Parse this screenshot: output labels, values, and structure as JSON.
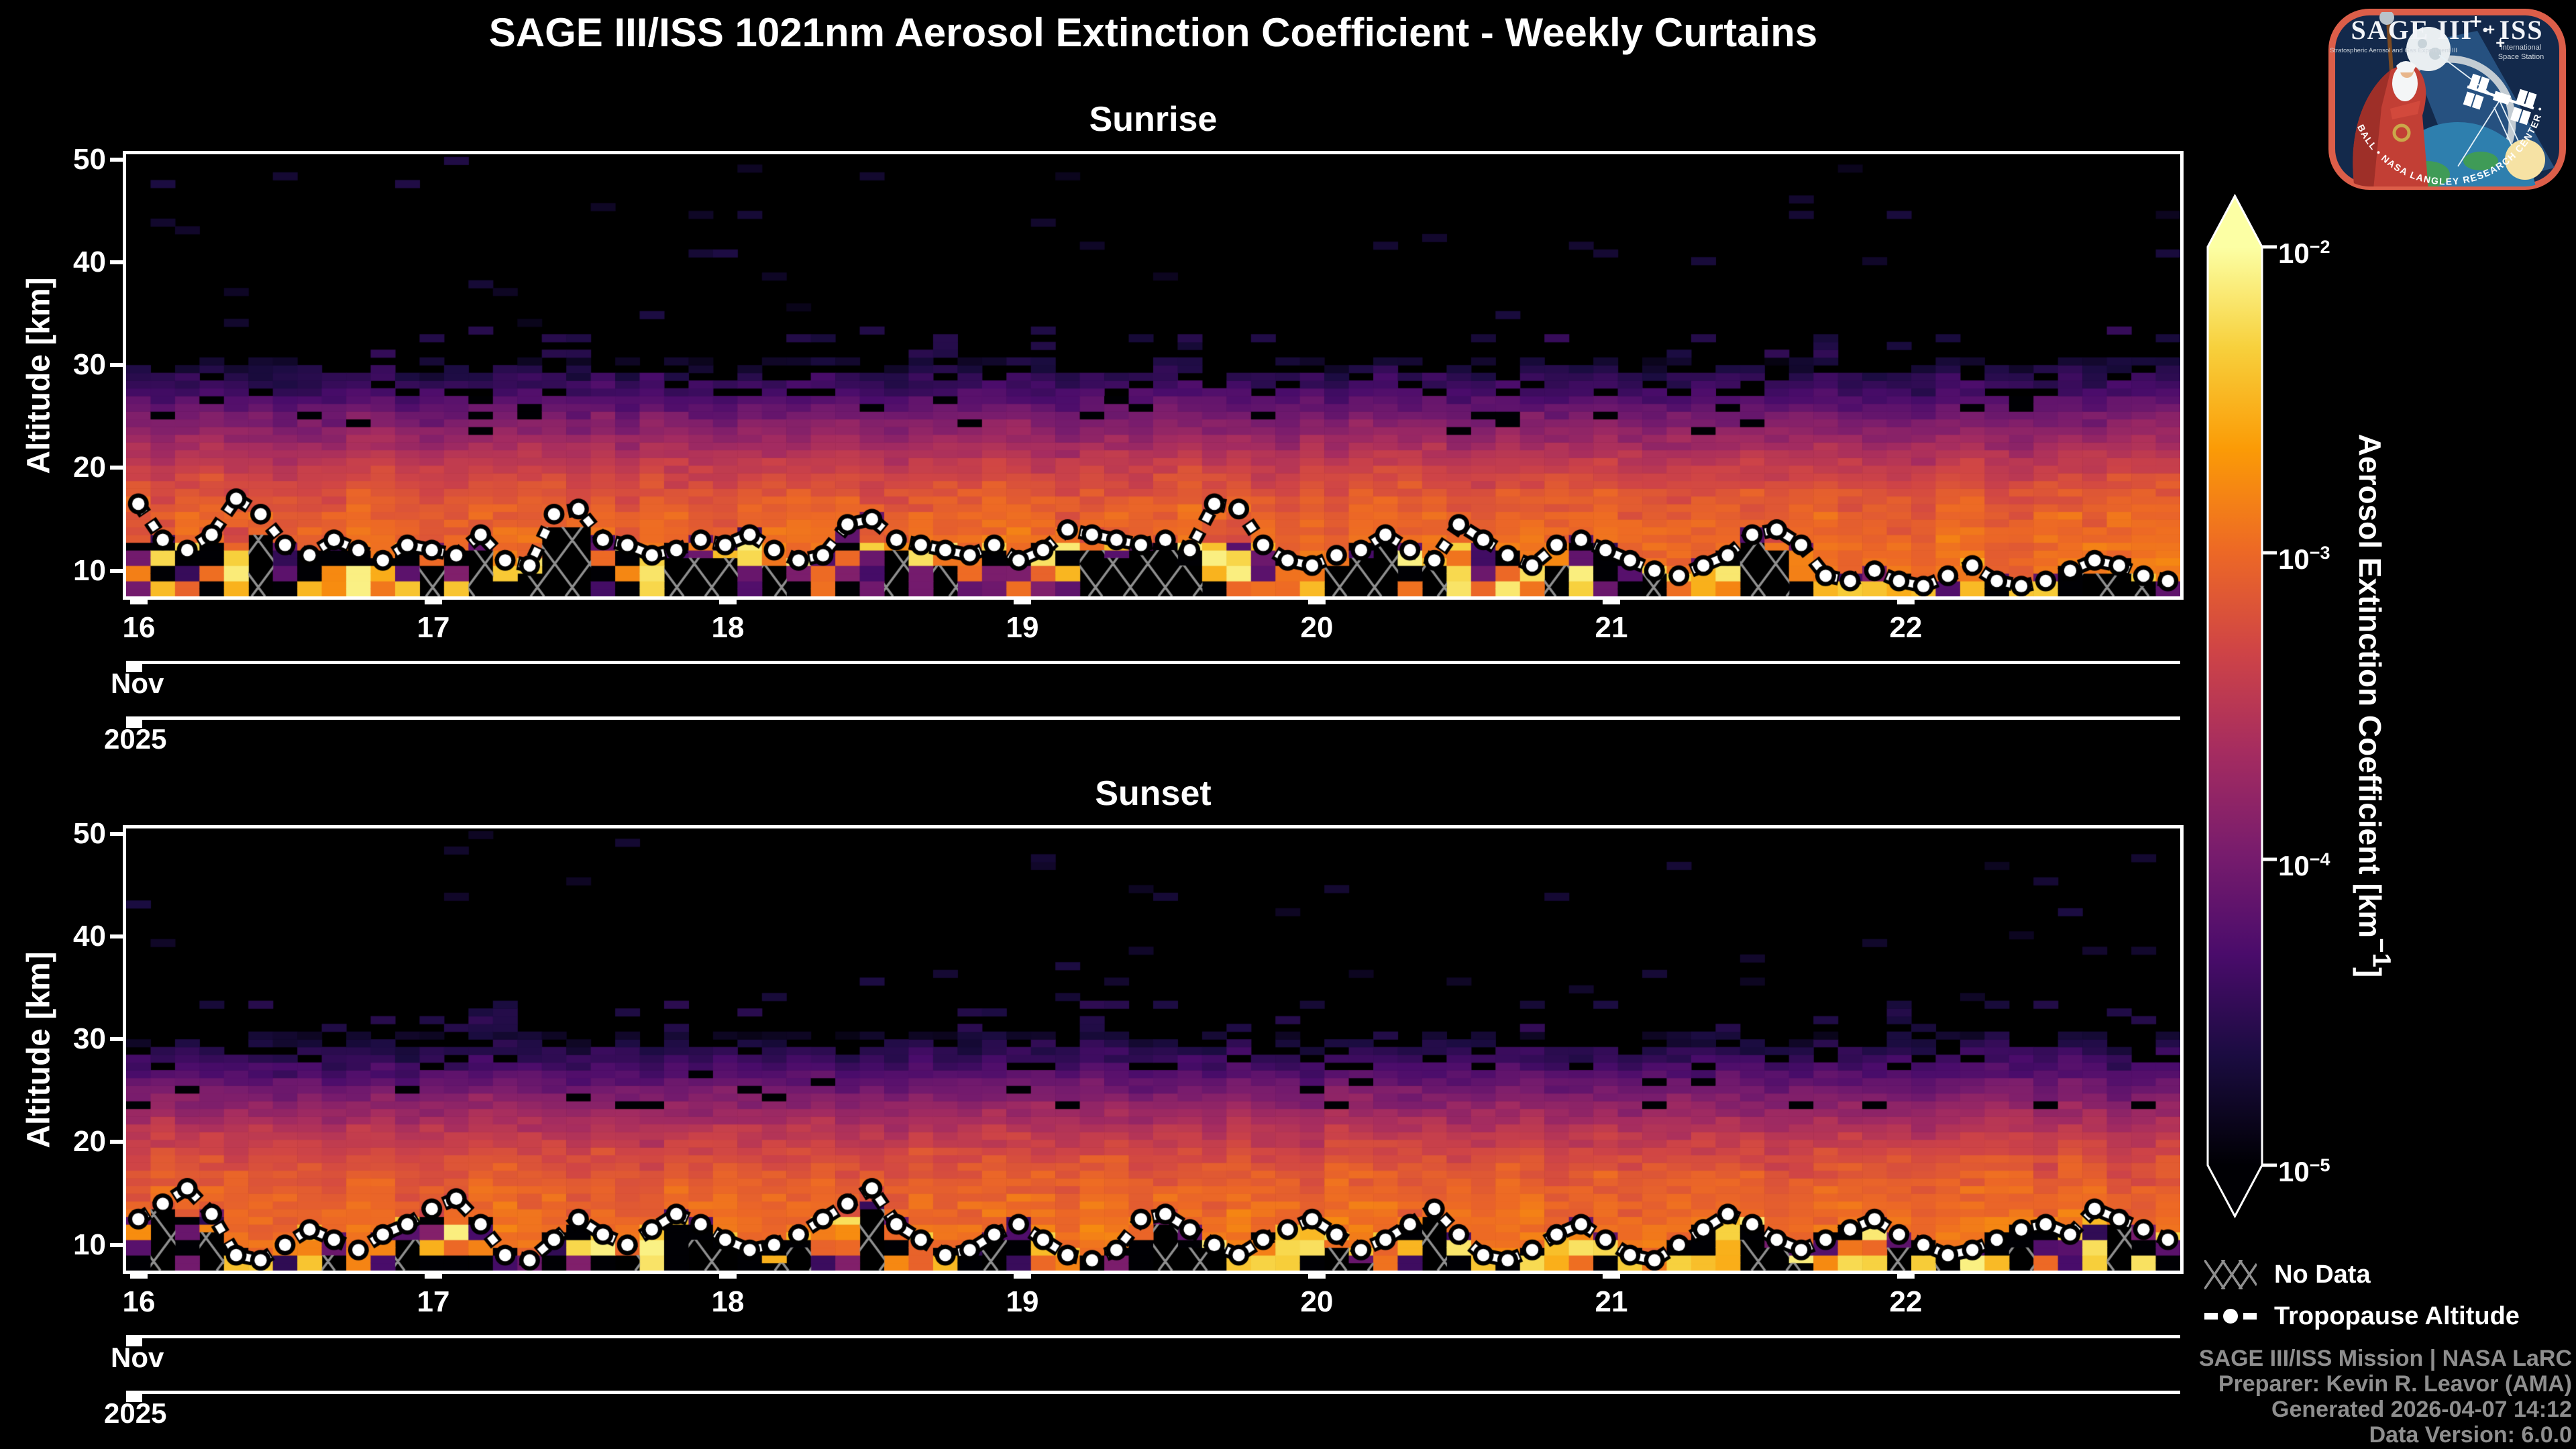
{
  "title": "SAGE III/ISS 1021nm Aerosol Extinction Coefficient - Weekly Curtains",
  "panels": [
    {
      "subtitle": "Sunrise"
    },
    {
      "subtitle": "Sunset"
    }
  ],
  "axes": {
    "y_label": "Altitude [km]",
    "y_ticks": [
      "50",
      "40",
      "30",
      "20",
      "10"
    ],
    "y_tick_values": [
      50,
      40,
      30,
      20,
      10
    ],
    "ylim": [
      7.5,
      50.5
    ],
    "x_tick_labels": [
      "16",
      "17",
      "18",
      "19",
      "20",
      "21",
      "22"
    ],
    "x_month": "Nov",
    "x_year": "2025"
  },
  "colorbar": {
    "label_prefix": "Aerosol Extinction Coefficient [km",
    "label_sup": "−1",
    "label_suffix": "]",
    "ticks": [
      {
        "base": "10",
        "exp": "−2"
      },
      {
        "base": "10",
        "exp": "−3"
      },
      {
        "base": "10",
        "exp": "−4"
      },
      {
        "base": "10",
        "exp": "−5"
      }
    ],
    "gradient_stops": [
      [
        0.0,
        "#000004"
      ],
      [
        0.12,
        "#1b0c41"
      ],
      [
        0.23,
        "#4a0c6b"
      ],
      [
        0.34,
        "#781c6d"
      ],
      [
        0.45,
        "#a52c60"
      ],
      [
        0.56,
        "#cf4446"
      ],
      [
        0.67,
        "#ed6925"
      ],
      [
        0.78,
        "#fb9b06"
      ],
      [
        0.89,
        "#f7d03c"
      ],
      [
        1.0,
        "#fcffa4"
      ]
    ]
  },
  "legend": {
    "no_data": "No Data",
    "tropopause": "Tropopause Altitude",
    "hatch_color": "#8f8f8f",
    "marker_color": "#ffffff"
  },
  "footer": {
    "lines": [
      "SAGE III/ISS Mission | NASA LaRC",
      "Preparer: Kevin R. Leavor (AMA)",
      "Generated 2026-04-07 14:12",
      "Data Version: 6.0.0"
    ]
  },
  "logo": {
    "title": "SAGE III · ISS",
    "sub_left": "Stratospheric Aerosol and Gas Experiment III",
    "sub_right_1": "International",
    "sub_right_2": "Space Station",
    "rim_text": "BALL  •  NASA LANGLEY RESEARCH CENTER  •  ESA",
    "border_color": "#dc5e49"
  },
  "chart_data": [
    {
      "type": "heatmap",
      "title": "Sunrise",
      "xlabel": "Nov 2025, days 16-22",
      "x_days": [
        16,
        17,
        18,
        19,
        20,
        21,
        22
      ],
      "columns": 84,
      "columns_per_day": 12,
      "ylabel": "Altitude [km]",
      "ylim": [
        7.5,
        50.5
      ],
      "row_height_km": 0.75,
      "value": "aerosol extinction coefficient",
      "clim": [
        1e-05,
        0.01
      ],
      "color_scale": "log10, inferno-style colormap",
      "legend_position": "right",
      "noise_seed": 11,
      "profile_log10_by_altitude": [
        [
          8,
          -2.95
        ],
        [
          11,
          -2.95
        ],
        [
          13,
          -3.0
        ],
        [
          15,
          -3.05
        ],
        [
          17,
          -3.15
        ],
        [
          19,
          -3.3
        ],
        [
          21,
          -3.5
        ],
        [
          23,
          -3.75
        ],
        [
          25,
          -4.0
        ],
        [
          27,
          -4.3
        ],
        [
          29,
          -4.55
        ],
        [
          31,
          -4.85
        ],
        [
          34,
          -5.15
        ],
        [
          50,
          -5.3
        ]
      ],
      "tropopause_km": [
        16.5,
        13.0,
        12.0,
        13.5,
        17.0,
        15.5,
        12.5,
        11.5,
        13.0,
        12.0,
        11.0,
        12.5,
        12.0,
        11.5,
        13.5,
        11.0,
        10.5,
        15.5,
        16.0,
        13.0,
        12.5,
        11.5,
        12.0,
        13.0,
        12.5,
        13.5,
        12.0,
        11.0,
        11.5,
        14.5,
        15.0,
        13.0,
        12.5,
        12.0,
        11.5,
        12.5,
        11.0,
        12.0,
        14.0,
        13.5,
        13.0,
        12.5,
        13.0,
        12.0,
        16.5,
        16.0,
        12.5,
        11.0,
        10.5,
        11.5,
        12.0,
        13.5,
        12.0,
        11.0,
        14.5,
        13.0,
        11.5,
        10.5,
        12.5,
        13.0,
        12.0,
        11.0,
        10.0,
        9.5,
        10.5,
        11.5,
        13.5,
        14.0,
        12.5,
        9.5,
        9.0,
        10.0,
        9.0,
        8.5,
        9.5,
        10.5,
        9.0,
        8.5,
        9.0,
        10.0,
        11.0,
        10.5,
        9.5,
        9.0
      ]
    },
    {
      "type": "heatmap",
      "title": "Sunset",
      "xlabel": "Nov 2025, days 16-22",
      "x_days": [
        16,
        17,
        18,
        19,
        20,
        21,
        22
      ],
      "columns": 84,
      "columns_per_day": 12,
      "ylabel": "Altitude [km]",
      "ylim": [
        7.5,
        50.5
      ],
      "row_height_km": 0.75,
      "value": "aerosol extinction coefficient",
      "clim": [
        1e-05,
        0.01
      ],
      "color_scale": "log10, inferno-style colormap",
      "legend_position": "right",
      "noise_seed": 42,
      "profile_log10_by_altitude": [
        [
          8,
          -2.95
        ],
        [
          11,
          -2.95
        ],
        [
          13,
          -3.0
        ],
        [
          15,
          -3.05
        ],
        [
          17,
          -3.15
        ],
        [
          19,
          -3.3
        ],
        [
          21,
          -3.5
        ],
        [
          23,
          -3.75
        ],
        [
          25,
          -4.0
        ],
        [
          27,
          -4.3
        ],
        [
          29,
          -4.55
        ],
        [
          31,
          -4.85
        ],
        [
          34,
          -5.15
        ],
        [
          50,
          -5.3
        ]
      ],
      "tropopause_km": [
        12.5,
        14.0,
        15.5,
        13.0,
        9.0,
        8.5,
        10.0,
        11.5,
        10.5,
        9.5,
        11.0,
        12.0,
        13.5,
        14.5,
        12.0,
        9.0,
        8.5,
        10.5,
        12.5,
        11.0,
        10.0,
        11.5,
        13.0,
        12.0,
        10.5,
        9.5,
        10.0,
        11.0,
        12.5,
        14.0,
        15.5,
        12.0,
        10.5,
        9.0,
        9.5,
        11.0,
        12.0,
        10.5,
        9.0,
        8.5,
        9.5,
        12.5,
        13.0,
        11.5,
        10.0,
        9.0,
        10.5,
        11.5,
        12.5,
        11.0,
        9.5,
        10.5,
        12.0,
        13.5,
        11.0,
        9.0,
        8.5,
        9.5,
        11.0,
        12.0,
        10.5,
        9.0,
        8.5,
        10.0,
        11.5,
        13.0,
        12.0,
        10.5,
        9.5,
        10.5,
        11.5,
        12.5,
        11.0,
        10.0,
        9.0,
        9.5,
        10.5,
        11.5,
        12.0,
        11.0,
        13.5,
        12.5,
        11.5,
        10.5
      ]
    }
  ]
}
